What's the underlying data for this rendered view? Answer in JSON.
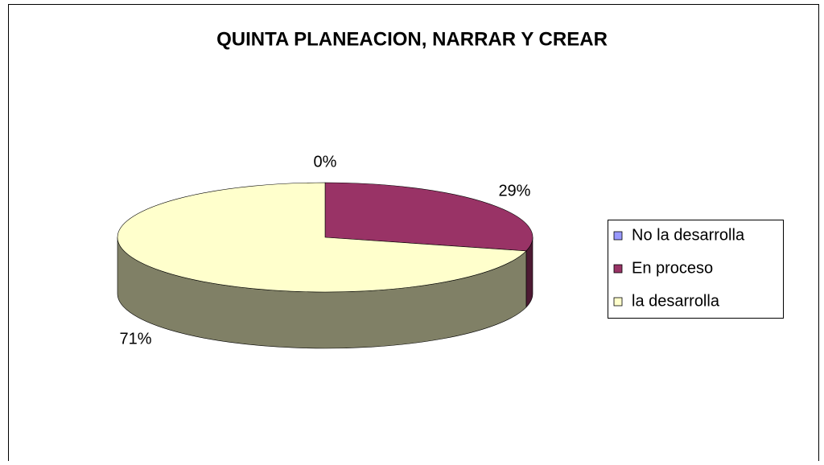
{
  "chart_data": {
    "type": "pie",
    "title": "QUINTA PLANEACION, NARRAR Y CREAR",
    "categories": [
      "No la desarrolla",
      "En proceso",
      "la desarrolla"
    ],
    "values": [
      0,
      29,
      71
    ],
    "value_labels": [
      "0%",
      "29%",
      "71%"
    ],
    "colors": [
      "#9999ff",
      "#993366",
      "#ffffcc"
    ],
    "legend": "right"
  }
}
